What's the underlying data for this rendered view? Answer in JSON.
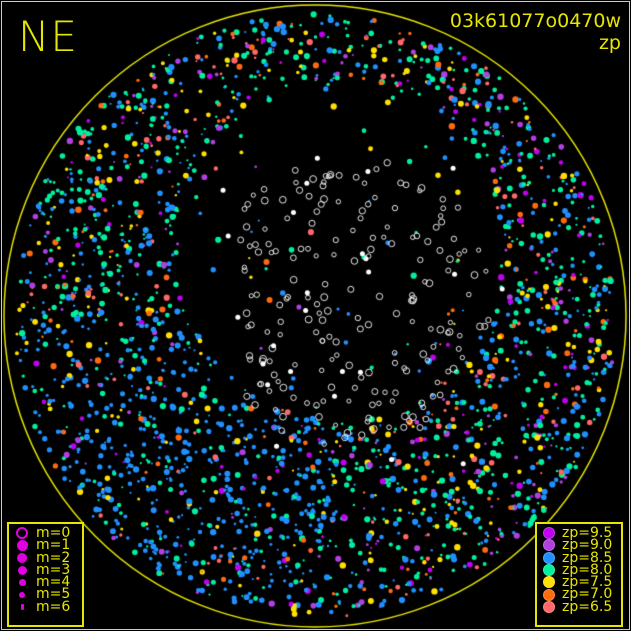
{
  "plot": {
    "direction_label": "NE",
    "frame_id": "03k61077o0470w",
    "color_key": "zp",
    "circle_color": "#e6e600"
  },
  "magnitude_legend": {
    "color": "#e000e0",
    "items": [
      {
        "label": "m=0",
        "style": "ring"
      },
      {
        "label": "m=1",
        "style": "dot"
      },
      {
        "label": "m=2",
        "style": "dot"
      },
      {
        "label": "m=3",
        "style": "dot"
      },
      {
        "label": "m=4",
        "style": "dot"
      },
      {
        "label": "m=5",
        "style": "dot"
      },
      {
        "label": "m=6",
        "style": "dot"
      }
    ]
  },
  "zp_legend": {
    "items": [
      {
        "label": "zp=9.5",
        "color": "#c000f0"
      },
      {
        "label": "zp=9.0",
        "color": "#b040e0"
      },
      {
        "label": "zp=8.5",
        "color": "#2090ff"
      },
      {
        "label": "zp=8.0",
        "color": "#00f0a0"
      },
      {
        "label": "zp=7.5",
        "color": "#ffe000"
      },
      {
        "label": "zp=7.0",
        "color": "#ff6a10"
      },
      {
        "label": "zp=6.5",
        "color": "#ff6868"
      }
    ]
  }
}
